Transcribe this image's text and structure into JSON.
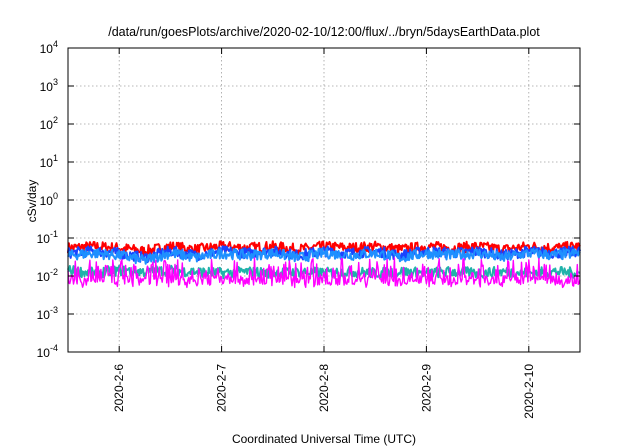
{
  "chart_data": {
    "type": "line",
    "title": "/data/run/goesPlots/archive/2020-02-10/12:00/flux/../bryn/5daysEarthData.plot",
    "xlabel": "Coordinated Universal Time (UTC)",
    "ylabel": "cSv/day",
    "y_scale": "log",
    "ylim": [
      0.0001,
      10000
    ],
    "y_ticks": [
      {
        "value": 0.0001,
        "base": "10",
        "exp": "-4"
      },
      {
        "value": 0.001,
        "base": "10",
        "exp": "-3"
      },
      {
        "value": 0.01,
        "base": "10",
        "exp": "-2"
      },
      {
        "value": 0.1,
        "base": "10",
        "exp": "-1"
      },
      {
        "value": 1,
        "base": "10",
        "exp": "0"
      },
      {
        "value": 10,
        "base": "10",
        "exp": "1"
      },
      {
        "value": 100,
        "base": "10",
        "exp": "2"
      },
      {
        "value": 1000,
        "base": "10",
        "exp": "3"
      },
      {
        "value": 10000,
        "base": "10",
        "exp": "4"
      }
    ],
    "xlim": [
      "2020-02-05 12:00",
      "2020-02-10 12:00"
    ],
    "x_ticks": [
      {
        "value": "2020-02-06 00:00",
        "label": "2020-2-6"
      },
      {
        "value": "2020-02-07 00:00",
        "label": "2020-2-7"
      },
      {
        "value": "2020-02-08 00:00",
        "label": "2020-2-8"
      },
      {
        "value": "2020-02-09 00:00",
        "label": "2020-2-9"
      },
      {
        "value": "2020-02-10 00:00",
        "label": "2020-2-10"
      }
    ],
    "grid": true,
    "legend": "none",
    "series": [
      {
        "color": "#ff0000",
        "x": [
          "2020-02-05 12:00",
          "2020-02-05 18:00",
          "2020-02-06 00:00",
          "2020-02-06 06:00",
          "2020-02-06 12:00",
          "2020-02-06 18:00",
          "2020-02-07 00:00",
          "2020-02-07 06:00",
          "2020-02-07 12:00",
          "2020-02-07 18:00",
          "2020-02-08 00:00",
          "2020-02-08 06:00",
          "2020-02-08 12:00",
          "2020-02-08 18:00",
          "2020-02-09 00:00",
          "2020-02-09 06:00",
          "2020-02-09 12:00",
          "2020-02-09 18:00",
          "2020-02-10 00:00",
          "2020-02-10 06:00",
          "2020-02-10 12:00"
        ],
        "values": [
          0.055,
          0.06,
          0.055,
          0.045,
          0.06,
          0.05,
          0.06,
          0.055,
          0.06,
          0.05,
          0.06,
          0.055,
          0.06,
          0.05,
          0.06,
          0.055,
          0.06,
          0.05,
          0.06,
          0.055,
          0.06
        ]
      },
      {
        "color": "#1a44ff",
        "x": [
          "2020-02-05 12:00",
          "2020-02-05 18:00",
          "2020-02-06 00:00",
          "2020-02-06 06:00",
          "2020-02-06 12:00",
          "2020-02-06 18:00",
          "2020-02-07 00:00",
          "2020-02-07 06:00",
          "2020-02-07 12:00",
          "2020-02-07 18:00",
          "2020-02-08 00:00",
          "2020-02-08 06:00",
          "2020-02-08 12:00",
          "2020-02-08 18:00",
          "2020-02-09 00:00",
          "2020-02-09 06:00",
          "2020-02-09 12:00",
          "2020-02-09 18:00",
          "2020-02-10 00:00",
          "2020-02-10 06:00",
          "2020-02-10 12:00"
        ],
        "values": [
          0.04,
          0.045,
          0.04,
          0.03,
          0.045,
          0.035,
          0.045,
          0.04,
          0.045,
          0.035,
          0.045,
          0.04,
          0.045,
          0.035,
          0.045,
          0.04,
          0.045,
          0.035,
          0.045,
          0.04,
          0.045
        ]
      },
      {
        "color": "#1e90ff",
        "x": [
          "2020-02-05 12:00",
          "2020-02-05 18:00",
          "2020-02-06 00:00",
          "2020-02-06 06:00",
          "2020-02-06 12:00",
          "2020-02-06 18:00",
          "2020-02-07 00:00",
          "2020-02-07 06:00",
          "2020-02-07 12:00",
          "2020-02-07 18:00",
          "2020-02-08 00:00",
          "2020-02-08 06:00",
          "2020-02-08 12:00",
          "2020-02-08 18:00",
          "2020-02-09 00:00",
          "2020-02-09 06:00",
          "2020-02-09 12:00",
          "2020-02-09 18:00",
          "2020-02-10 00:00",
          "2020-02-10 06:00",
          "2020-02-10 12:00"
        ],
        "values": [
          0.035,
          0.04,
          0.035,
          0.025,
          0.04,
          0.03,
          0.04,
          0.035,
          0.04,
          0.03,
          0.04,
          0.035,
          0.04,
          0.03,
          0.04,
          0.035,
          0.04,
          0.03,
          0.04,
          0.035,
          0.04
        ]
      },
      {
        "color": "#20b2aa",
        "x": [
          "2020-02-05 12:00",
          "2020-02-05 18:00",
          "2020-02-06 00:00",
          "2020-02-06 06:00",
          "2020-02-06 12:00",
          "2020-02-06 18:00",
          "2020-02-07 00:00",
          "2020-02-07 06:00",
          "2020-02-07 12:00",
          "2020-02-07 18:00",
          "2020-02-08 00:00",
          "2020-02-08 06:00",
          "2020-02-08 12:00",
          "2020-02-08 18:00",
          "2020-02-09 00:00",
          "2020-02-09 06:00",
          "2020-02-09 12:00",
          "2020-02-09 18:00",
          "2020-02-10 00:00",
          "2020-02-10 06:00",
          "2020-02-10 12:00"
        ],
        "values": [
          0.014,
          0.012,
          0.014,
          0.013,
          0.014,
          0.013,
          0.012,
          0.013,
          0.012,
          0.013,
          0.012,
          0.013,
          0.012,
          0.013,
          0.012,
          0.013,
          0.012,
          0.013,
          0.012,
          0.013,
          0.012
        ]
      },
      {
        "color": "#ff00ff",
        "x": [
          "2020-02-05 12:00",
          "2020-02-05 18:00",
          "2020-02-06 00:00",
          "2020-02-06 06:00",
          "2020-02-06 12:00",
          "2020-02-06 18:00",
          "2020-02-07 00:00",
          "2020-02-07 06:00",
          "2020-02-07 12:00",
          "2020-02-07 18:00",
          "2020-02-08 00:00",
          "2020-02-08 06:00",
          "2020-02-08 12:00",
          "2020-02-08 18:00",
          "2020-02-09 00:00",
          "2020-02-09 06:00",
          "2020-02-09 12:00",
          "2020-02-09 18:00",
          "2020-02-10 00:00",
          "2020-02-10 06:00",
          "2020-02-10 12:00"
        ],
        "values": [
          0.008,
          0.0075,
          0.008,
          0.007,
          0.008,
          0.007,
          0.008,
          0.0075,
          0.008,
          0.007,
          0.008,
          0.0075,
          0.008,
          0.007,
          0.008,
          0.0075,
          0.008,
          0.007,
          0.008,
          0.0075,
          0.008
        ],
        "spread_range": [
          0.005,
          0.03
        ]
      }
    ]
  }
}
